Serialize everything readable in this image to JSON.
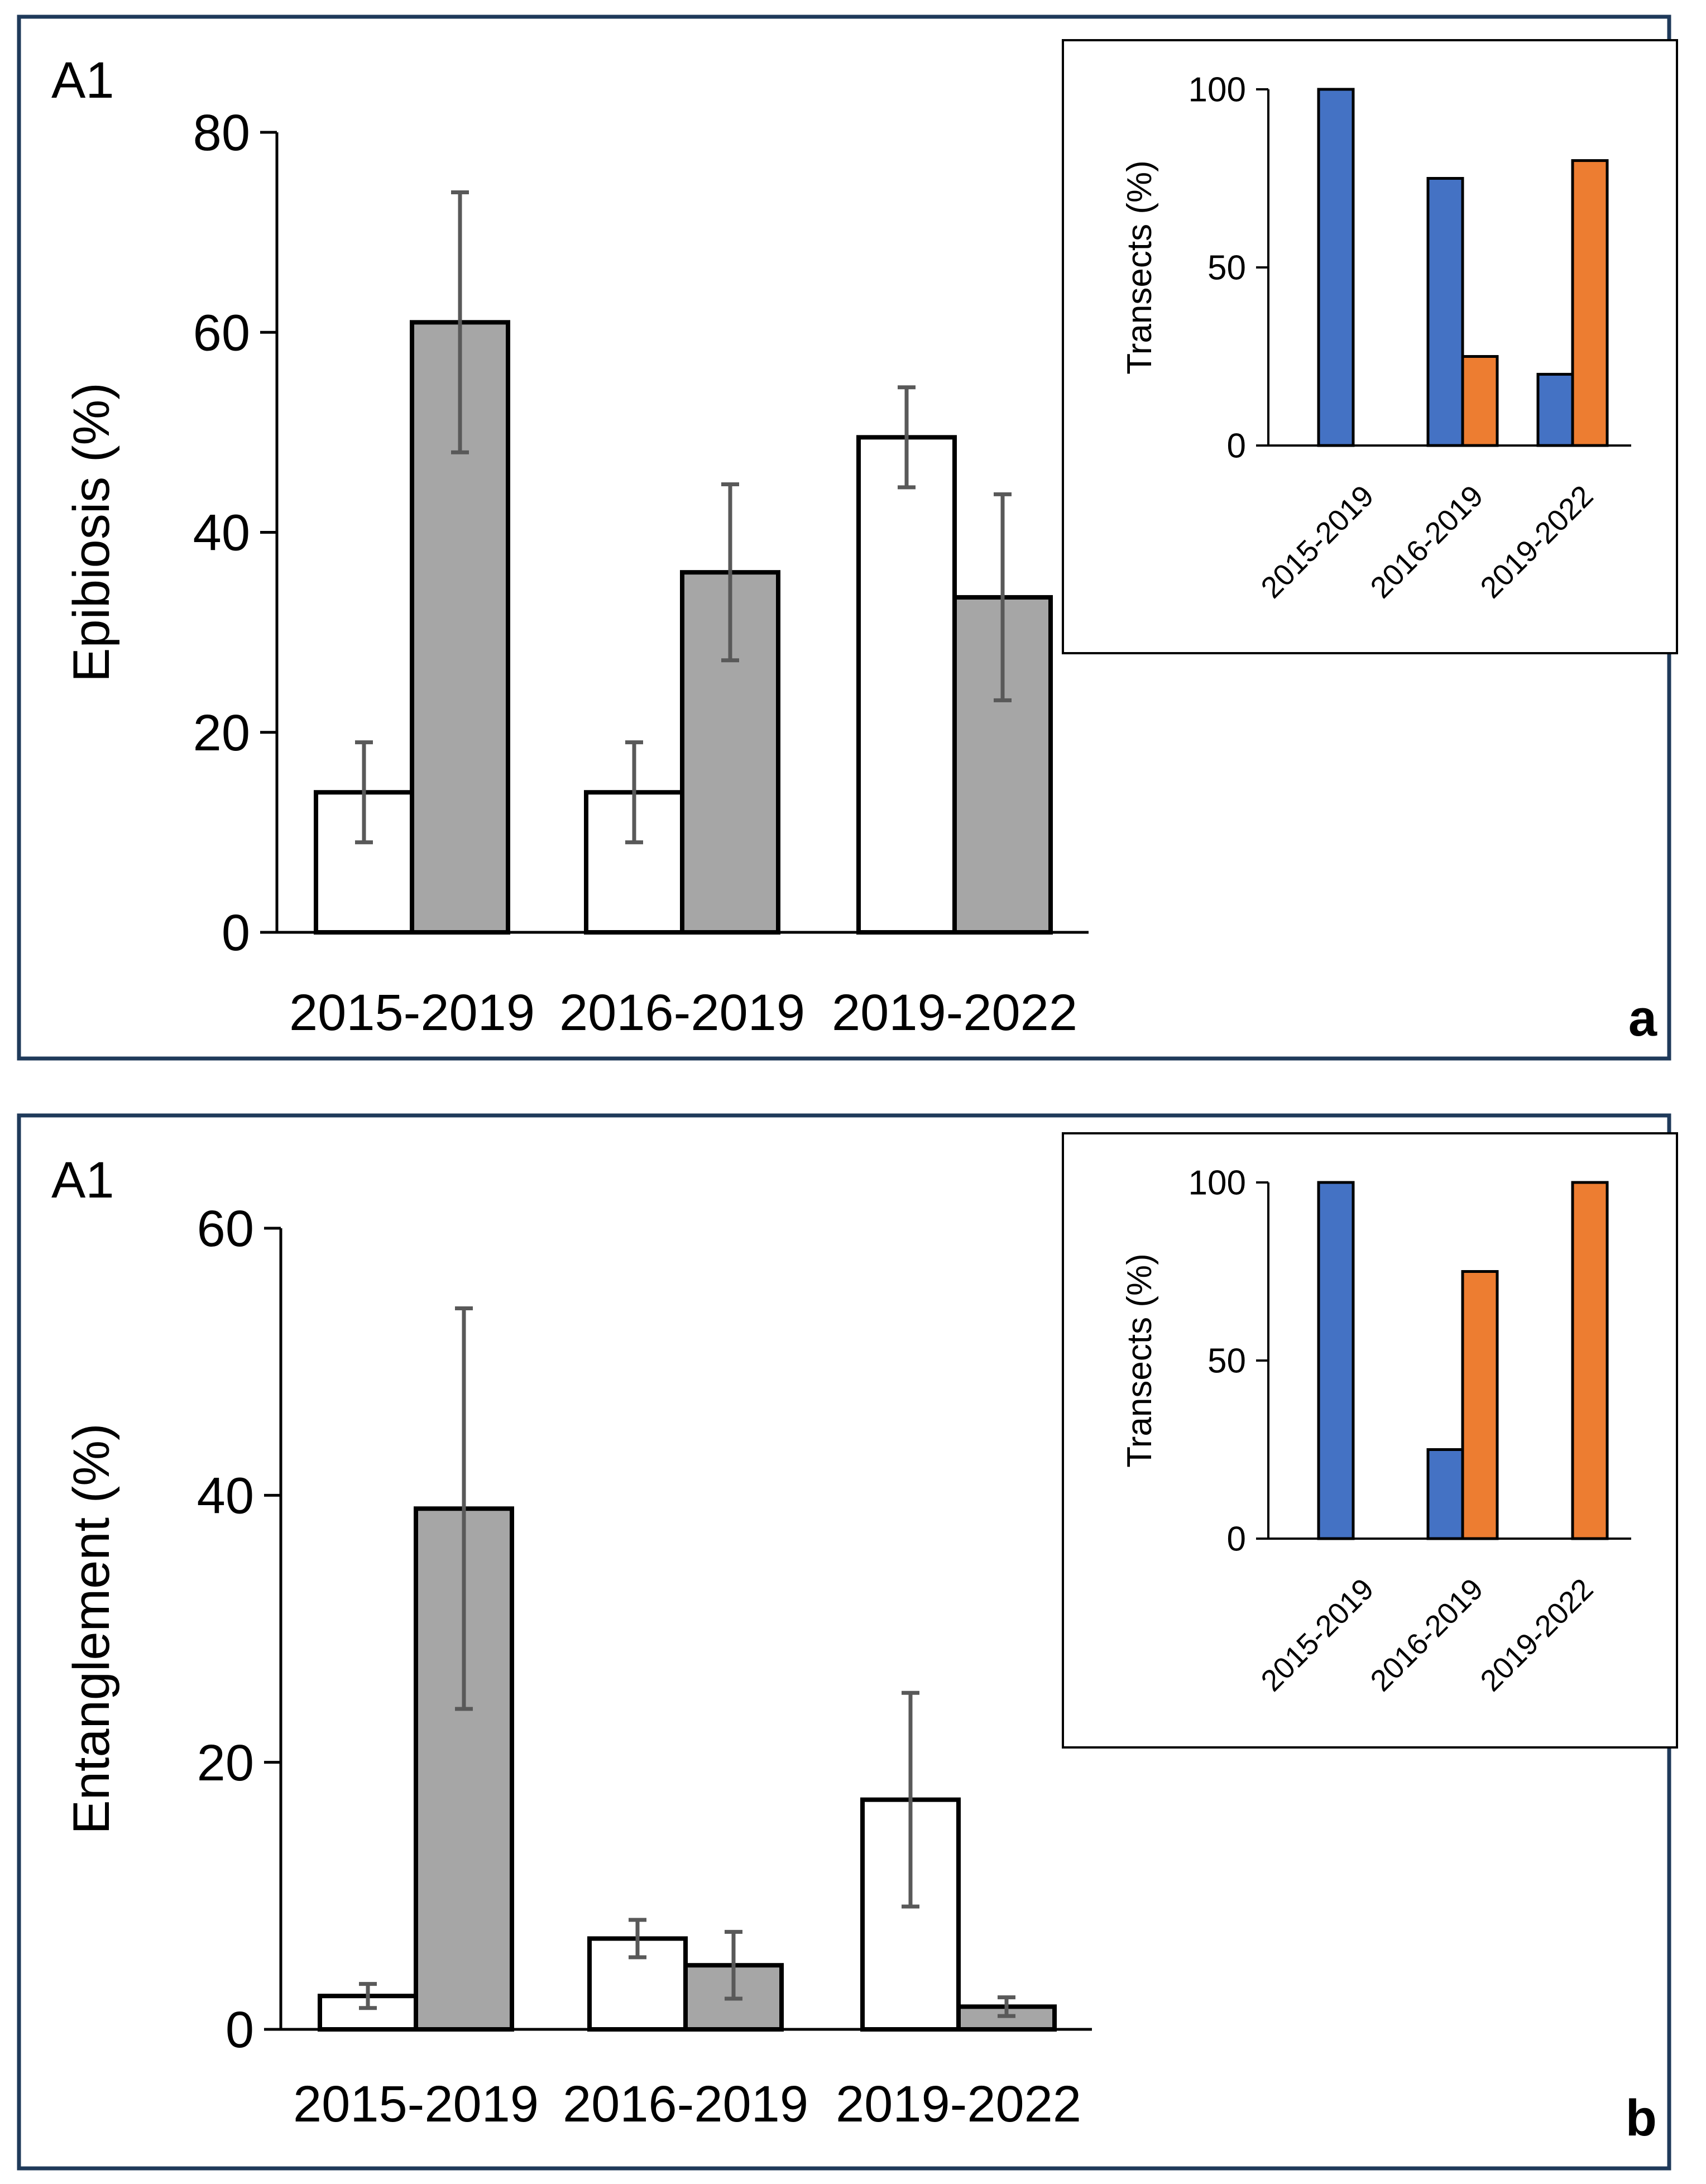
{
  "chart_data": [
    {
      "panel_label": "a",
      "site_label": "A1",
      "type": "bar",
      "ylabel": "Epibiosis (%)",
      "ylim": [
        0,
        80
      ],
      "yticks": [
        0,
        20,
        40,
        60,
        80
      ],
      "categories": [
        "2015-2019",
        "2016-2019",
        "2019-2022"
      ],
      "series": [
        {
          "name": "white",
          "color": "#ffffff",
          "values": [
            14,
            14,
            49.5
          ],
          "errors": [
            5,
            5,
            5
          ]
        },
        {
          "name": "grey",
          "color": "#a6a6a6",
          "values": [
            61,
            36,
            33.5
          ],
          "errors": [
            13,
            8.8,
            10.3
          ]
        }
      ],
      "inset": {
        "type": "bar",
        "ylabel": "Transects (%)",
        "ylim": [
          0,
          100
        ],
        "yticks": [
          0,
          50,
          100
        ],
        "categories": [
          "2015-2019",
          "2016-2019",
          "2019-2022"
        ],
        "series": [
          {
            "name": "blue",
            "color": "#4472c4",
            "values": [
              100,
              75,
              20
            ]
          },
          {
            "name": "orange",
            "color": "#ed7d31",
            "values": [
              0,
              25,
              80
            ]
          }
        ]
      }
    },
    {
      "panel_label": "b",
      "site_label": "A1",
      "type": "bar",
      "ylabel": "Entanglement (%)",
      "ylim": [
        0,
        60
      ],
      "yticks": [
        0,
        20,
        40,
        60
      ],
      "categories": [
        "2015-2019",
        "2016-2019",
        "2019-2022"
      ],
      "series": [
        {
          "name": "white",
          "color": "#ffffff",
          "values": [
            2.5,
            6.8,
            17.2
          ],
          "errors": [
            0.9,
            1.4,
            8
          ]
        },
        {
          "name": "grey",
          "color": "#a6a6a6",
          "values": [
            39,
            4.8,
            1.7
          ],
          "errors": [
            15,
            2.5,
            0.7
          ]
        }
      ],
      "inset": {
        "type": "bar",
        "ylabel": "Transects (%)",
        "ylim": [
          0,
          100
        ],
        "yticks": [
          0,
          50,
          100
        ],
        "categories": [
          "2015-2019",
          "2016-2019",
          "2019-2022"
        ],
        "series": [
          {
            "name": "blue",
            "color": "#4472c4",
            "values": [
              100,
              25,
              0
            ]
          },
          {
            "name": "orange",
            "color": "#ed7d31",
            "values": [
              0,
              75,
              100
            ]
          }
        ]
      }
    }
  ]
}
